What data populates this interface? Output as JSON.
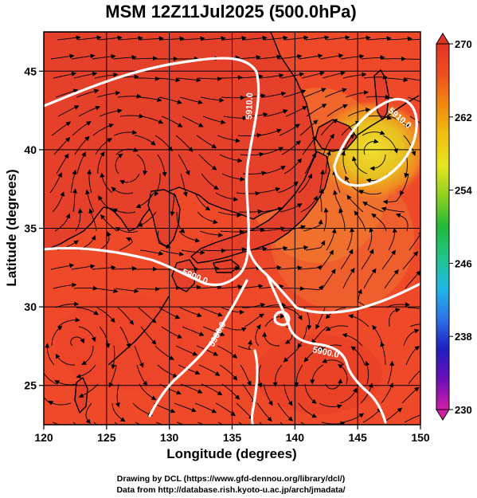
{
  "title": "MSM 12Z11Jul2025 (500.0hPa)",
  "x_axis": {
    "label": "Longitude (degrees)",
    "range": [
      120,
      150
    ],
    "ticks": [
      "120",
      "125",
      "130",
      "135",
      "140",
      "145",
      "150"
    ]
  },
  "y_axis": {
    "label": "Latitude  (degrees)",
    "range": [
      22.5,
      47.5
    ],
    "ticks": [
      "25",
      "30",
      "35",
      "40",
      "45"
    ]
  },
  "colorbar": {
    "range": [
      230,
      270
    ],
    "ticks": [
      "270",
      "262",
      "254",
      "246",
      "238",
      "230"
    ],
    "colors": [
      "#d21fa8",
      "#6a0fb8",
      "#1f1fc0",
      "#2f74e6",
      "#1fb8e6",
      "#22c488",
      "#22b83a",
      "#8ed020",
      "#e6e620",
      "#f0c010",
      "#f08a10",
      "#ee5020",
      "#e03424"
    ]
  },
  "contours": {
    "color": "#ffffff",
    "labels": [
      "5910.0",
      "5910.0",
      "5900.0",
      "5900.0",
      "5900.0"
    ]
  },
  "map": {
    "background_color": "#ee4a2a",
    "cold_core_colors": [
      "#e8c020",
      "#f0e030",
      "#f09020"
    ],
    "coastline_color": "#000000",
    "grid_color": "#000000"
  },
  "footer": {
    "line1": "Drawing by DCL (https://www.gfd-dennou.org/library/dcl/)",
    "line2": "Data from http://database.rish.kyoto-u.ac.jp/arch/jmadata/"
  }
}
